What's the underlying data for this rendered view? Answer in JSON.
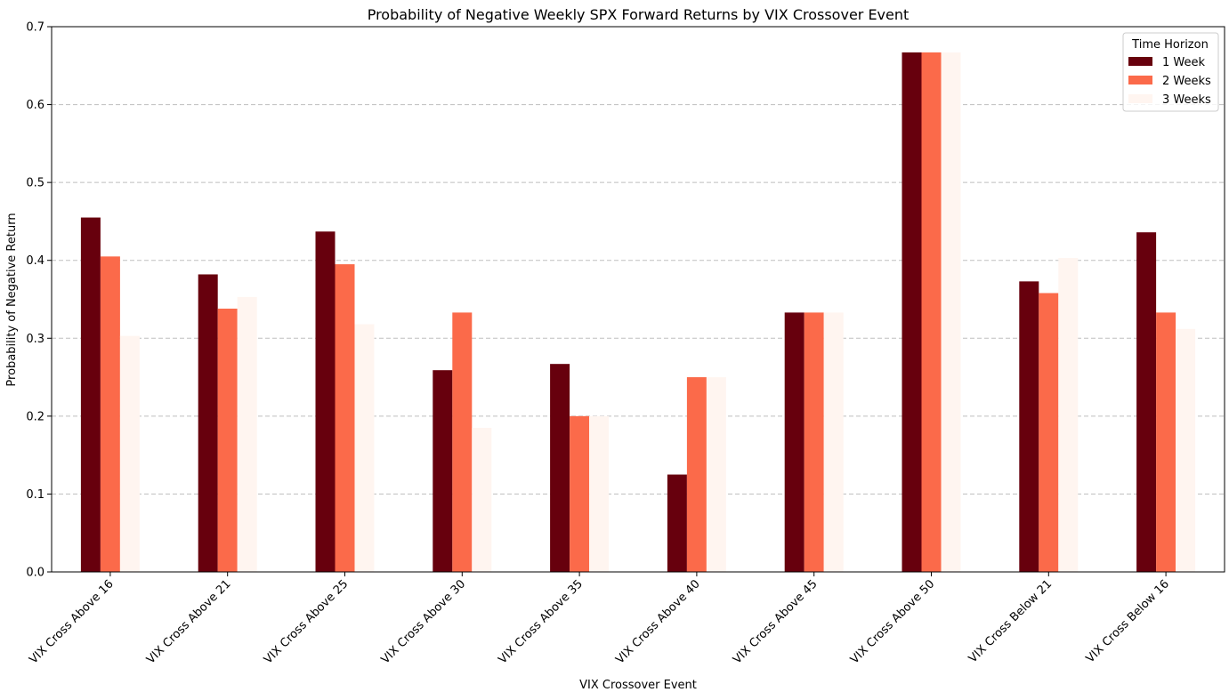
{
  "chart_data": {
    "type": "bar",
    "title": "Probability of Negative Weekly SPX Forward Returns by VIX Crossover Event",
    "xlabel": "VIX Crossover Event",
    "ylabel": "Probability of Negative Return",
    "ylim": [
      0,
      0.7
    ],
    "yticks": [
      "0.0",
      "0.1",
      "0.2",
      "0.3",
      "0.4",
      "0.5",
      "0.6",
      "0.7"
    ],
    "grid": "horizontal dashed",
    "legend": {
      "title": "Time Horizon",
      "placement": "top-right"
    },
    "categories": [
      "VIX Cross Above 16",
      "VIX Cross Above 21",
      "VIX Cross Above 25",
      "VIX Cross Above 30",
      "VIX Cross Above 35",
      "VIX Cross Above 40",
      "VIX Cross Above 45",
      "VIX Cross Above 50",
      "VIX Cross Below 21",
      "VIX Cross Below 16"
    ],
    "series": [
      {
        "name": "1 Week",
        "color": "#67000d",
        "values": [
          0.455,
          0.382,
          0.437,
          0.259,
          0.267,
          0.125,
          0.333,
          0.667,
          0.373,
          0.436
        ]
      },
      {
        "name": "2 Weeks",
        "color": "#fb6a4a",
        "values": [
          0.405,
          0.338,
          0.395,
          0.333,
          0.2,
          0.25,
          0.333,
          0.667,
          0.358,
          0.333
        ]
      },
      {
        "name": "3 Weeks",
        "color": "#fff5f0",
        "values": [
          0.303,
          0.353,
          0.318,
          0.185,
          0.2,
          0.25,
          0.333,
          0.667,
          0.403,
          0.312
        ]
      }
    ]
  }
}
